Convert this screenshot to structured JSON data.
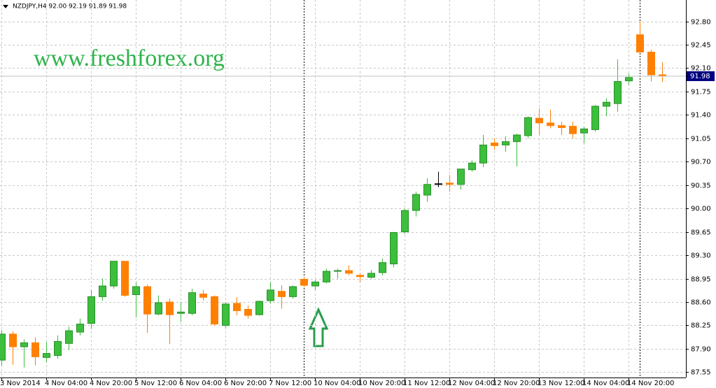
{
  "chart_data": {
    "type": "candlestick",
    "title": "NZDJPY,H4  92.00 92.19 91.89 91.98",
    "annotation": "www.freshforex.org",
    "categories": [
      "3 Nov 2014",
      null,
      null,
      null,
      "4 Nov 04:00",
      null,
      null,
      null,
      "4 Nov 20:00",
      null,
      null,
      null,
      "5 Nov 12:00",
      null,
      null,
      null,
      "6 Nov 04:00",
      null,
      null,
      null,
      "6 Nov 20:00",
      null,
      null,
      null,
      "7 Nov 12:00",
      null,
      null,
      null,
      "10 Nov 04:00",
      null,
      null,
      null,
      "10 Nov 20:00",
      null,
      null,
      null,
      "11 Nov 12:00",
      null,
      null,
      null,
      "12 Nov 04:00",
      null,
      null,
      null,
      "12 Nov 20:00",
      null,
      null,
      null,
      "13 Nov 12:00",
      null,
      null,
      null,
      "14 Nov 04:00",
      null,
      null,
      null,
      "14 Nov 20:00",
      null,
      null,
      null
    ],
    "open": [
      87.73,
      88.12,
      87.93,
      87.99,
      87.77,
      87.8,
      87.98,
      88.15,
      88.28,
      88.68,
      88.84,
      89.21,
      88.71,
      88.83,
      88.42,
      88.6,
      88.43,
      88.43,
      88.72,
      88.68,
      88.25,
      88.58,
      88.49,
      88.41,
      88.62,
      88.76,
      88.68,
      88.94,
      88.84,
      88.9,
      89.06,
      89.07,
      89.0,
      88.97,
      89.04,
      89.17,
      89.65,
      89.97,
      90.2,
      90.37,
      90.38,
      90.36,
      90.58,
      90.68,
      90.98,
      90.95,
      91.0,
      91.09,
      91.35,
      91.28,
      91.24,
      91.23,
      91.13,
      91.18,
      91.53,
      91.57,
      91.91,
      92.6,
      92.34,
      92.0
    ],
    "high": [
      88.18,
      88.16,
      88.04,
      88.07,
      88.0,
      88.1,
      88.23,
      88.35,
      88.78,
      88.95,
      89.21,
      89.21,
      88.9,
      88.86,
      88.7,
      88.65,
      88.6,
      88.8,
      88.78,
      88.7,
      88.6,
      88.67,
      88.55,
      88.62,
      88.9,
      88.85,
      88.85,
      88.98,
      88.93,
      89.1,
      89.1,
      89.15,
      89.03,
      89.08,
      89.25,
      89.65,
      90.0,
      90.25,
      90.45,
      90.55,
      90.5,
      90.59,
      90.72,
      91.1,
      91.05,
      91.08,
      91.12,
      91.38,
      91.5,
      91.48,
      91.3,
      91.3,
      91.22,
      91.55,
      91.65,
      92.23,
      92.02,
      92.8,
      92.38,
      92.19
    ],
    "low": [
      87.65,
      87.66,
      87.62,
      87.65,
      87.7,
      87.75,
      87.88,
      88.1,
      88.2,
      88.62,
      88.8,
      88.68,
      88.37,
      88.14,
      88.4,
      87.97,
      88.3,
      88.4,
      88.62,
      88.25,
      88.22,
      88.4,
      88.35,
      88.4,
      88.58,
      88.5,
      88.65,
      88.82,
      88.78,
      88.88,
      88.95,
      89.0,
      88.9,
      88.95,
      89.0,
      89.12,
      89.62,
      89.88,
      90.1,
      90.32,
      90.25,
      90.28,
      90.55,
      90.62,
      90.88,
      90.85,
      90.63,
      91.05,
      91.1,
      91.2,
      91.1,
      91.05,
      90.98,
      91.15,
      91.38,
      91.45,
      91.85,
      92.34,
      91.9,
      91.89
    ],
    "close": [
      88.12,
      87.93,
      87.99,
      87.78,
      87.83,
      88.01,
      88.17,
      88.27,
      88.68,
      88.84,
      89.21,
      88.7,
      88.83,
      88.42,
      88.59,
      88.41,
      88.45,
      88.74,
      88.67,
      88.27,
      88.57,
      88.47,
      88.4,
      88.61,
      88.78,
      88.68,
      88.83,
      88.85,
      88.9,
      89.06,
      89.07,
      89.03,
      88.98,
      89.03,
      89.19,
      89.64,
      89.97,
      90.21,
      90.36,
      90.37,
      90.36,
      90.59,
      90.68,
      90.95,
      90.94,
      91.0,
      91.1,
      91.36,
      91.28,
      91.24,
      91.21,
      91.12,
      91.19,
      91.53,
      91.59,
      91.9,
      91.96,
      92.34,
      92.0,
      91.98
    ],
    "up_color": "#3cbf3c",
    "down_color": "#ff8000",
    "flat_color": "#000000",
    "last_price": 91.98,
    "ylim": [
      87.47,
      93.12
    ],
    "yticks": [
      87.55,
      {
        "value": 87.9,
        "label": "87.90"
      },
      88.25,
      {
        "value": 88.6,
        "label": "88.60"
      },
      88.95,
      {
        "value": 89.3,
        "label": "89.30"
      },
      89.65,
      {
        "value": 90.0,
        "label": "90.00"
      },
      90.35,
      {
        "value": 90.7,
        "label": "90.70"
      },
      91.05,
      {
        "value": 91.4,
        "label": "91.40"
      },
      91.75,
      {
        "value": 92.1,
        "label": "92.10"
      },
      92.45,
      {
        "value": 92.8,
        "label": "92.80"
      }
    ],
    "grid": true
  }
}
